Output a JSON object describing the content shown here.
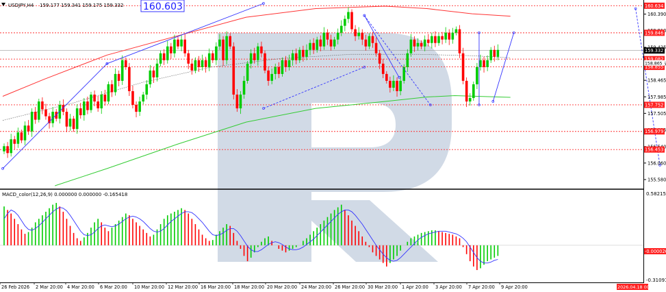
{
  "header": {
    "symbol": "USDJPY,H4",
    "ohlc": "159.177 159.341 159.175 159.332",
    "big_price": "160.603"
  },
  "macd": {
    "label": "MACD_color(12,26,9) 0.000000 0.000000 -0.165418",
    "axis": [
      "0.582153",
      "-0.000026",
      "-0.310912"
    ]
  },
  "colors": {
    "bull": "#00cc00",
    "bear": "#ff0000",
    "ma_red": "#ff3333",
    "ma_green": "#33cc33",
    "trend": "#3333ff",
    "level_line": "#ff3030",
    "watermark": "#c9d4e2"
  },
  "chart_data": [
    {
      "type": "candlestick",
      "title": "USDJPY,H4",
      "ylim": [
        155.3,
        160.8
      ],
      "y_ticks": [
        "160.390",
        "159.910",
        "159.425",
        "158.945",
        "158.465",
        "157.985",
        "157.505",
        "157.025",
        "156.540",
        "156.060",
        "155.580"
      ],
      "x_tick_labels": [
        "26 Feb 2026",
        "2 Mar 20:00",
        "4 Mar 20:00",
        "6 Mar 20:00",
        "10 Mar 20:00",
        "12 Mar 20:00",
        "16 Mar 20:00",
        "18 Mar 20:00",
        "20 Mar 20:00",
        "24 Mar 20:00",
        "26 Mar 20:00",
        "30 Mar 20:00",
        "1 Apr 20:00",
        "3 Apr 20:00",
        "7 Apr 20:00",
        "9 Apr 20:00"
      ],
      "future_time_label": "2026.04.18 00:00",
      "levels": [
        {
          "value": 160.634,
          "label": "160.634",
          "bg": "#ff2020"
        },
        {
          "value": 159.846,
          "label": "159.846",
          "bg": "#ff2020"
        },
        {
          "value": 159.082,
          "label": "159.082",
          "bg": "#ff2020"
        },
        {
          "value": 158.855,
          "label": "158.855",
          "bg": "#ff2020"
        },
        {
          "value": 157.752,
          "label": "157.752",
          "bg": "#ff2020"
        },
        {
          "value": 156.979,
          "label": "156.979",
          "bg": "#ff2020"
        },
        {
          "value": 156.453,
          "label": "156.453",
          "bg": "#ff2020"
        }
      ],
      "current_price": {
        "value": 159.332,
        "label": "159.332"
      },
      "overlap_label": "158.865",
      "closes": [
        156.55,
        156.35,
        156.75,
        156.62,
        156.95,
        156.72,
        157.15,
        156.98,
        157.55,
        157.32,
        157.85,
        157.62,
        157.42,
        157.22,
        157.55,
        157.35,
        157.75,
        157.55,
        157.12,
        157.35,
        157.05,
        157.65,
        157.45,
        157.85,
        157.6,
        158.05,
        157.85,
        157.65,
        158.05,
        157.85,
        158.35,
        158.12,
        158.65,
        158.45,
        159.05,
        158.85,
        158.15,
        157.75,
        157.55,
        157.85,
        158.05,
        158.35,
        158.75,
        158.55,
        158.95,
        159.25,
        159.05,
        159.45,
        159.25,
        159.65,
        159.45,
        159.65,
        159.25,
        158.95,
        158.75,
        159.05,
        158.85,
        159.05,
        158.85,
        159.25,
        159.05,
        159.45,
        159.65,
        159.05,
        159.75,
        159.45,
        158.05,
        157.65,
        158.05,
        158.45,
        158.95,
        159.25,
        159.05,
        159.45,
        159.25,
        158.75,
        158.45,
        158.65,
        158.85,
        158.65,
        159.05,
        158.85,
        159.05,
        159.25,
        159.05,
        159.35,
        159.15,
        159.35,
        159.55,
        159.35,
        159.65,
        159.45,
        159.85,
        159.65,
        159.45,
        159.65,
        159.85,
        160.05,
        160.25,
        160.45,
        159.95,
        159.75,
        159.85,
        159.65,
        159.45,
        159.75,
        159.55,
        159.25,
        158.95,
        158.65,
        158.45,
        158.25,
        158.45,
        158.15,
        158.45,
        158.85,
        159.25,
        159.65,
        159.45,
        159.55,
        159.45,
        159.65,
        159.55,
        159.75,
        159.55,
        159.75,
        159.65,
        159.85,
        159.65,
        159.85,
        159.95,
        159.25,
        158.45,
        157.85,
        157.95,
        158.35,
        158.85,
        159.05,
        158.85,
        159.05,
        159.35,
        159.15,
        159.35
      ],
      "ma_red": [
        [
          0,
          158.0
        ],
        [
          12,
          158.5
        ],
        [
          30,
          159.2
        ],
        [
          50,
          159.75
        ],
        [
          70,
          160.3
        ],
        [
          90,
          160.55
        ],
        [
          110,
          160.62
        ],
        [
          122,
          160.55
        ],
        [
          135,
          160.4
        ],
        [
          146,
          160.33
        ]
      ],
      "ma_green": [
        [
          15,
          155.4
        ],
        [
          30,
          155.9
        ],
        [
          50,
          156.6
        ],
        [
          70,
          157.25
        ],
        [
          90,
          157.65
        ],
        [
          110,
          157.85
        ],
        [
          122,
          157.98
        ],
        [
          130,
          158.02
        ],
        [
          146,
          157.97
        ]
      ],
      "ma_dotted": [
        [
          0,
          157.3
        ],
        [
          20,
          157.8
        ],
        [
          40,
          158.4
        ],
        [
          60,
          158.85
        ],
        [
          80,
          159.1
        ],
        [
          100,
          159.22
        ],
        [
          120,
          159.22
        ],
        [
          135,
          159.18
        ],
        [
          146,
          159.12
        ]
      ],
      "trend_lines": [
        [
          [
            0,
            155.9
          ],
          [
            30,
            158.95
          ]
        ],
        [
          [
            30,
            158.95
          ],
          [
            75,
            160.7
          ]
        ],
        [
          [
            75,
            157.65
          ],
          [
            104,
            158.85
          ]
        ],
        [
          [
            104,
            160.35
          ],
          [
            114,
            158.55
          ]
        ],
        [
          [
            104,
            160.35
          ],
          [
            123,
            157.75
          ]
        ],
        [
          [
            137,
            159.85
          ],
          [
            137,
            157.75
          ]
        ],
        [
          [
            141,
            157.85
          ],
          [
            147,
            159.85
          ]
        ],
        [
          [
            182,
            160.55
          ],
          [
            189,
            156.0
          ]
        ]
      ],
      "macd_histogram": [
        0.44,
        0.4,
        0.36,
        0.3,
        0.24,
        0.18,
        0.13,
        0.15,
        0.2,
        0.26,
        0.3,
        0.34,
        0.38,
        0.42,
        0.46,
        0.48,
        0.44,
        0.38,
        0.3,
        0.22,
        0.14,
        0.08,
        0.05,
        0.09,
        0.14,
        0.2,
        0.26,
        0.3,
        0.26,
        0.2,
        0.16,
        0.2,
        0.24,
        0.28,
        0.32,
        0.36,
        0.34,
        0.3,
        0.26,
        0.22,
        0.18,
        0.14,
        0.1,
        0.12,
        0.18,
        0.24,
        0.3,
        0.34,
        0.36,
        0.38,
        0.4,
        0.42,
        0.4,
        0.36,
        0.3,
        0.24,
        0.18,
        0.12,
        0.08,
        0.05,
        0.06,
        0.12,
        0.16,
        0.2,
        0.24,
        0.22,
        0.14,
        0.05,
        -0.04,
        -0.12,
        -0.18,
        -0.14,
        -0.08,
        -0.02,
        0.04,
        0.08,
        0.1,
        0.05,
        0.0,
        -0.04,
        -0.06,
        -0.08,
        -0.06,
        -0.04,
        -0.02,
        0.0,
        0.05,
        0.08,
        0.12,
        0.16,
        0.2,
        0.24,
        0.28,
        0.32,
        0.36,
        0.4,
        0.43,
        0.46,
        0.4,
        0.34,
        0.28,
        0.22,
        0.16,
        0.1,
        0.04,
        -0.02,
        -0.08,
        -0.12,
        -0.16,
        -0.2,
        -0.24,
        -0.2,
        -0.16,
        -0.12,
        -0.06,
        0.0,
        0.04,
        0.08,
        0.1,
        0.12,
        0.14,
        0.15,
        0.16,
        0.17,
        0.17,
        0.16,
        0.15,
        0.14,
        0.13,
        0.12,
        0.1,
        0.08,
        -0.02,
        -0.1,
        -0.18,
        -0.24,
        -0.28,
        -0.26,
        -0.22,
        -0.18,
        -0.16,
        -0.14,
        -0.12
      ],
      "macd_signal": [
        0.3,
        0.36,
        0.4,
        0.38,
        0.34,
        0.28,
        0.22,
        0.18,
        0.17,
        0.19,
        0.22,
        0.26,
        0.3,
        0.34,
        0.38,
        0.41,
        0.43,
        0.42,
        0.39,
        0.34,
        0.28,
        0.22,
        0.16,
        0.12,
        0.11,
        0.12,
        0.15,
        0.19,
        0.22,
        0.23,
        0.22,
        0.21,
        0.22,
        0.24,
        0.27,
        0.3,
        0.32,
        0.33,
        0.32,
        0.3,
        0.27,
        0.23,
        0.19,
        0.16,
        0.15,
        0.16,
        0.19,
        0.23,
        0.27,
        0.3,
        0.33,
        0.36,
        0.38,
        0.38,
        0.37,
        0.34,
        0.3,
        0.26,
        0.21,
        0.16,
        0.12,
        0.11,
        0.12,
        0.14,
        0.17,
        0.19,
        0.19,
        0.16,
        0.11,
        0.05,
        -0.01,
        -0.05,
        -0.07,
        -0.07,
        -0.05,
        -0.02,
        0.01,
        0.03,
        0.04,
        0.03,
        0.01,
        -0.02,
        -0.04,
        -0.05,
        -0.05,
        -0.04,
        -0.02,
        0.01,
        0.04,
        0.07,
        0.11,
        0.15,
        0.19,
        0.23,
        0.27,
        0.31,
        0.35,
        0.38,
        0.4,
        0.4,
        0.38,
        0.34,
        0.29,
        0.24,
        0.18,
        0.12,
        0.06,
        0.0,
        -0.05,
        -0.1,
        -0.14,
        -0.17,
        -0.18,
        -0.17,
        -0.14,
        -0.1,
        -0.06,
        -0.02,
        0.02,
        0.06,
        0.09,
        0.11,
        0.13,
        0.14,
        0.15,
        0.16,
        0.16,
        0.16,
        0.15,
        0.14,
        0.13,
        0.11,
        0.08,
        0.04,
        -0.02,
        -0.08,
        -0.14,
        -0.18,
        -0.2,
        -0.2,
        -0.19,
        -0.17,
        -0.16
      ],
      "macd_ylim": [
        -0.42,
        0.62
      ]
    }
  ]
}
